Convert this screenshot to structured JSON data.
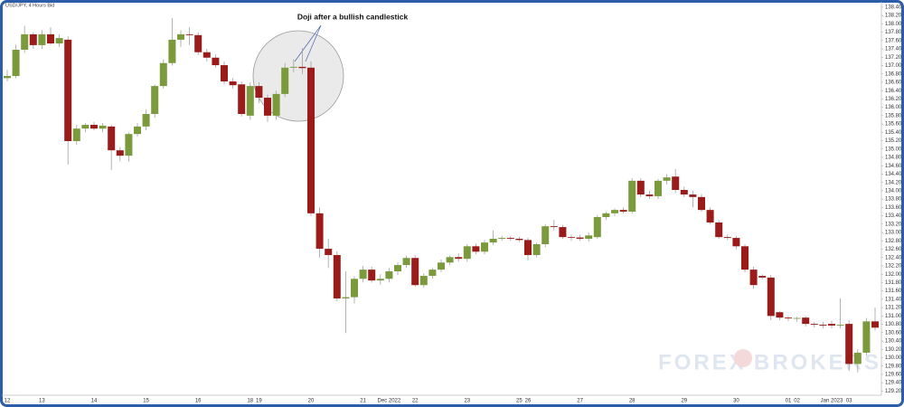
{
  "chart_data": {
    "type": "candlestick",
    "title": "USD/JPY, 4 Hours Bid",
    "annotation": "Doji after a bullish candlestick",
    "watermark": [
      "FOREX",
      "BROKERS"
    ],
    "up_color": "#7a9a3c",
    "down_color": "#9b1b1b",
    "wick_color": "#a0a0a0",
    "categories": [
      "12",
      null,
      null,
      null,
      "13",
      null,
      null,
      null,
      null,
      null,
      "14",
      null,
      null,
      null,
      null,
      null,
      "15",
      null,
      null,
      null,
      null,
      null,
      "16",
      null,
      null,
      null,
      null,
      null,
      "18",
      "19",
      null,
      null,
      null,
      null,
      null,
      "20",
      null,
      null,
      null,
      null,
      null,
      "21",
      null,
      null,
      "Dec 2022",
      null,
      null,
      "22",
      null,
      null,
      null,
      null,
      null,
      "23",
      null,
      null,
      null,
      null,
      null,
      "25",
      "26",
      null,
      null,
      null,
      null,
      null,
      "27",
      null,
      null,
      null,
      null,
      null,
      "28",
      null,
      null,
      null,
      null,
      null,
      "29",
      null,
      null,
      null,
      null,
      null,
      "30",
      null,
      null,
      null,
      null,
      null,
      "01",
      "02",
      null,
      null,
      null,
      "Jan 2023",
      null,
      "03",
      null,
      null,
      null
    ],
    "open": [
      136.7,
      136.75,
      137.38,
      137.75,
      137.49,
      137.75,
      137.53,
      137.62,
      135.19,
      135.49,
      135.58,
      135.49,
      135.54,
      134.97,
      134.84,
      135.36,
      135.54,
      135.84,
      136.51,
      137.06,
      137.62,
      137.75,
      137.73,
      137.32,
      137.19,
      137.01,
      136.62,
      136.55,
      135.8,
      136.51,
      136.23,
      135.8,
      136.32,
      136.95,
      136.97,
      136.95,
      133.46,
      132.61,
      132.46,
      131.42,
      131.45,
      131.89,
      132.11,
      131.85,
      131.89,
      132.07,
      132.22,
      132.39,
      131.74,
      131.96,
      132.11,
      132.28,
      132.41,
      132.37,
      132.67,
      132.54,
      132.76,
      132.85,
      132.87,
      132.85,
      132.82,
      132.46,
      132.72,
      133.15,
      133.13,
      132.89,
      132.88,
      132.85,
      132.89,
      133.37,
      133.46,
      133.54,
      133.5,
      134.24,
      133.91,
      133.87,
      134.24,
      134.34,
      134.02,
      133.91,
      133.85,
      133.54,
      133.24,
      132.89,
      132.87,
      132.67,
      132.11,
      131.96,
      131.92,
      131.09,
      130.96,
      130.94,
      130.96,
      130.81,
      130.79,
      130.81,
      130.77,
      130.81,
      129.85,
      130.12,
      130.87
    ],
    "high": [
      136.9,
      137.5,
      137.95,
      137.8,
      137.85,
      137.92,
      137.75,
      137.7,
      135.58,
      135.62,
      135.65,
      135.62,
      135.58,
      135.05,
      135.4,
      135.62,
      135.95,
      136.55,
      137.15,
      138.14,
      137.85,
      137.92,
      137.8,
      137.4,
      137.27,
      137.1,
      136.7,
      136.62,
      136.6,
      136.6,
      136.3,
      136.4,
      137.06,
      137.15,
      137.42,
      137.1,
      133.6,
      132.85,
      132.55,
      132.07,
      131.95,
      132.2,
      132.18,
      132.0,
      132.15,
      132.28,
      132.45,
      132.46,
      132.02,
      132.15,
      132.35,
      132.45,
      132.5,
      132.72,
      132.74,
      132.82,
      133.05,
      132.92,
      132.92,
      132.9,
      132.87,
      132.75,
      133.2,
      133.3,
      133.18,
      132.95,
      132.95,
      133.0,
      133.42,
      133.5,
      133.58,
      133.6,
      134.3,
      134.3,
      134.0,
      134.28,
      134.4,
      134.52,
      134.1,
      134.0,
      133.92,
      133.6,
      133.3,
      132.95,
      132.92,
      132.72,
      132.18,
      132.0,
      131.98,
      131.12,
      131.0,
      130.98,
      131.0,
      130.86,
      130.85,
      130.88,
      131.42,
      130.9,
      130.2,
      130.95,
      131.2
    ],
    "low": [
      136.62,
      136.7,
      137.3,
      137.4,
      137.4,
      137.5,
      137.45,
      134.63,
      135.1,
      135.4,
      135.45,
      135.4,
      134.5,
      134.7,
      134.7,
      135.3,
      135.45,
      135.75,
      136.45,
      137.0,
      137.45,
      137.49,
      137.25,
      137.1,
      136.95,
      136.55,
      136.45,
      135.78,
      135.7,
      136.1,
      135.65,
      135.7,
      136.25,
      136.84,
      136.8,
      133.4,
      132.4,
      132.15,
      131.35,
      130.59,
      131.3,
      131.8,
      131.8,
      131.75,
      131.8,
      131.98,
      132.15,
      131.7,
      131.68,
      131.9,
      132.05,
      132.22,
      132.3,
      132.3,
      132.48,
      132.48,
      132.7,
      132.8,
      132.8,
      132.78,
      132.33,
      132.4,
      132.65,
      133.05,
      132.85,
      132.8,
      132.8,
      132.78,
      132.85,
      133.3,
      133.4,
      133.45,
      133.45,
      133.85,
      133.8,
      133.8,
      134.15,
      133.95,
      133.85,
      133.6,
      133.5,
      133.2,
      132.85,
      132.82,
      132.6,
      132.05,
      131.65,
      131.88,
      130.9,
      130.9,
      130.88,
      130.86,
      130.75,
      130.72,
      130.7,
      130.7,
      130.7,
      129.68,
      129.65,
      130.05,
      130.65
    ],
    "close": [
      136.75,
      137.38,
      137.75,
      137.49,
      137.75,
      137.53,
      137.66,
      135.19,
      135.49,
      135.58,
      135.49,
      135.56,
      134.97,
      134.84,
      135.36,
      135.54,
      135.84,
      136.51,
      137.06,
      137.62,
      137.75,
      137.73,
      137.32,
      137.19,
      137.01,
      136.62,
      136.53,
      135.84,
      136.51,
      136.23,
      135.8,
      136.32,
      136.95,
      136.97,
      136.94,
      133.46,
      132.61,
      132.46,
      131.42,
      131.45,
      131.89,
      132.11,
      131.85,
      131.89,
      132.07,
      132.22,
      132.39,
      131.74,
      131.96,
      132.11,
      132.28,
      132.41,
      132.37,
      132.67,
      132.54,
      132.76,
      132.85,
      132.87,
      132.85,
      132.82,
      132.46,
      132.72,
      133.15,
      133.13,
      132.89,
      132.88,
      132.85,
      132.93,
      133.37,
      133.46,
      133.54,
      133.5,
      134.24,
      133.91,
      133.87,
      134.24,
      134.32,
      134.02,
      133.91,
      133.85,
      133.54,
      133.24,
      132.89,
      132.87,
      132.67,
      132.11,
      131.74,
      131.92,
      131.0,
      130.96,
      130.94,
      130.95,
      130.81,
      130.79,
      130.77,
      130.77,
      130.79,
      129.85,
      130.12,
      130.87,
      130.72
    ],
    "ylim": [
      129.1,
      138.55
    ],
    "yticks": [
      {
        "value": 138.4,
        "label": "138.40"
      },
      {
        "value": 138.2,
        "label": "138.20"
      },
      {
        "value": 138.0,
        "label": "138.00"
      },
      {
        "value": 137.8,
        "label": "137.80"
      },
      {
        "value": 137.6,
        "label": "137.60"
      },
      {
        "value": 137.4,
        "label": "137.40"
      },
      {
        "value": 137.2,
        "label": "137.20"
      },
      {
        "value": 137.0,
        "label": "137.00"
      },
      {
        "value": 136.8,
        "label": "136.80"
      },
      {
        "value": 136.6,
        "label": "136.60"
      },
      {
        "value": 136.4,
        "label": "136.40"
      },
      {
        "value": 136.2,
        "label": "136.20"
      },
      {
        "value": 136.0,
        "label": "136.00"
      },
      {
        "value": 135.8,
        "label": "135.80"
      },
      {
        "value": 135.6,
        "label": "135.60"
      },
      {
        "value": 135.4,
        "label": "135.40"
      },
      {
        "value": 135.2,
        "label": "135.20"
      },
      {
        "value": 135.0,
        "label": "135.00"
      },
      {
        "value": 134.8,
        "label": "134.80"
      },
      {
        "value": 134.6,
        "label": "134.60"
      },
      {
        "value": 134.4,
        "label": "134.40"
      },
      {
        "value": 134.2,
        "label": "134.20"
      },
      {
        "value": 134.0,
        "label": "134.00"
      },
      {
        "value": 133.8,
        "label": "133.80"
      },
      {
        "value": 133.6,
        "label": "133.60"
      },
      {
        "value": 133.4,
        "label": "133.40"
      },
      {
        "value": 133.2,
        "label": "133.20"
      },
      {
        "value": 133.0,
        "label": "133.00"
      },
      {
        "value": 132.8,
        "label": "132.80"
      },
      {
        "value": 132.6,
        "label": "132.60"
      },
      {
        "value": 132.4,
        "label": "132.40"
      },
      {
        "value": 132.2,
        "label": "132.20"
      },
      {
        "value": 132.0,
        "label": "132.00"
      },
      {
        "value": 131.8,
        "label": "131.80"
      },
      {
        "value": 131.6,
        "label": "131.60"
      },
      {
        "value": 131.4,
        "label": "131.40"
      },
      {
        "value": 131.2,
        "label": "131.20"
      },
      {
        "value": 131.0,
        "label": "131.00"
      },
      {
        "value": 130.8,
        "label": "130.80"
      },
      {
        "value": 130.6,
        "label": "130.60"
      },
      {
        "value": 130.4,
        "label": "130.40"
      },
      {
        "value": 130.2,
        "label": "130.20"
      },
      {
        "value": 130.0,
        "label": "130.00"
      },
      {
        "value": 129.8,
        "label": "129.80"
      },
      {
        "value": 129.6,
        "label": "129.60"
      },
      {
        "value": 129.4,
        "label": "129.40"
      },
      {
        "value": 129.2,
        "label": "129.20"
      }
    ]
  }
}
